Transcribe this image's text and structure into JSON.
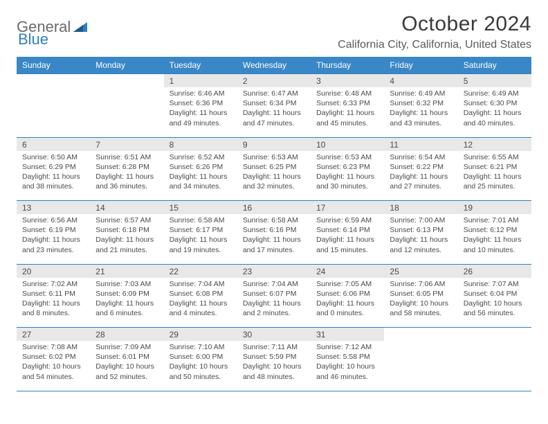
{
  "logo": {
    "word1": "General",
    "word2": "Blue"
  },
  "title": "October 2024",
  "location": "California City, California, United States",
  "header_bg": "#3a87c7",
  "accent_border": "#2f7fbf",
  "days": [
    "Sunday",
    "Monday",
    "Tuesday",
    "Wednesday",
    "Thursday",
    "Friday",
    "Saturday"
  ],
  "weeks": [
    [
      null,
      null,
      {
        "n": "1",
        "sr": "6:46 AM",
        "ss": "6:36 PM",
        "dl": "11 hours and 49 minutes."
      },
      {
        "n": "2",
        "sr": "6:47 AM",
        "ss": "6:34 PM",
        "dl": "11 hours and 47 minutes."
      },
      {
        "n": "3",
        "sr": "6:48 AM",
        "ss": "6:33 PM",
        "dl": "11 hours and 45 minutes."
      },
      {
        "n": "4",
        "sr": "6:49 AM",
        "ss": "6:32 PM",
        "dl": "11 hours and 43 minutes."
      },
      {
        "n": "5",
        "sr": "6:49 AM",
        "ss": "6:30 PM",
        "dl": "11 hours and 40 minutes."
      }
    ],
    [
      {
        "n": "6",
        "sr": "6:50 AM",
        "ss": "6:29 PM",
        "dl": "11 hours and 38 minutes."
      },
      {
        "n": "7",
        "sr": "6:51 AM",
        "ss": "6:28 PM",
        "dl": "11 hours and 36 minutes."
      },
      {
        "n": "8",
        "sr": "6:52 AM",
        "ss": "6:26 PM",
        "dl": "11 hours and 34 minutes."
      },
      {
        "n": "9",
        "sr": "6:53 AM",
        "ss": "6:25 PM",
        "dl": "11 hours and 32 minutes."
      },
      {
        "n": "10",
        "sr": "6:53 AM",
        "ss": "6:23 PM",
        "dl": "11 hours and 30 minutes."
      },
      {
        "n": "11",
        "sr": "6:54 AM",
        "ss": "6:22 PM",
        "dl": "11 hours and 27 minutes."
      },
      {
        "n": "12",
        "sr": "6:55 AM",
        "ss": "6:21 PM",
        "dl": "11 hours and 25 minutes."
      }
    ],
    [
      {
        "n": "13",
        "sr": "6:56 AM",
        "ss": "6:19 PM",
        "dl": "11 hours and 23 minutes."
      },
      {
        "n": "14",
        "sr": "6:57 AM",
        "ss": "6:18 PM",
        "dl": "11 hours and 21 minutes."
      },
      {
        "n": "15",
        "sr": "6:58 AM",
        "ss": "6:17 PM",
        "dl": "11 hours and 19 minutes."
      },
      {
        "n": "16",
        "sr": "6:58 AM",
        "ss": "6:16 PM",
        "dl": "11 hours and 17 minutes."
      },
      {
        "n": "17",
        "sr": "6:59 AM",
        "ss": "6:14 PM",
        "dl": "11 hours and 15 minutes."
      },
      {
        "n": "18",
        "sr": "7:00 AM",
        "ss": "6:13 PM",
        "dl": "11 hours and 12 minutes."
      },
      {
        "n": "19",
        "sr": "7:01 AM",
        "ss": "6:12 PM",
        "dl": "11 hours and 10 minutes."
      }
    ],
    [
      {
        "n": "20",
        "sr": "7:02 AM",
        "ss": "6:11 PM",
        "dl": "11 hours and 8 minutes."
      },
      {
        "n": "21",
        "sr": "7:03 AM",
        "ss": "6:09 PM",
        "dl": "11 hours and 6 minutes."
      },
      {
        "n": "22",
        "sr": "7:04 AM",
        "ss": "6:08 PM",
        "dl": "11 hours and 4 minutes."
      },
      {
        "n": "23",
        "sr": "7:04 AM",
        "ss": "6:07 PM",
        "dl": "11 hours and 2 minutes."
      },
      {
        "n": "24",
        "sr": "7:05 AM",
        "ss": "6:06 PM",
        "dl": "11 hours and 0 minutes."
      },
      {
        "n": "25",
        "sr": "7:06 AM",
        "ss": "6:05 PM",
        "dl": "10 hours and 58 minutes."
      },
      {
        "n": "26",
        "sr": "7:07 AM",
        "ss": "6:04 PM",
        "dl": "10 hours and 56 minutes."
      }
    ],
    [
      {
        "n": "27",
        "sr": "7:08 AM",
        "ss": "6:02 PM",
        "dl": "10 hours and 54 minutes."
      },
      {
        "n": "28",
        "sr": "7:09 AM",
        "ss": "6:01 PM",
        "dl": "10 hours and 52 minutes."
      },
      {
        "n": "29",
        "sr": "7:10 AM",
        "ss": "6:00 PM",
        "dl": "10 hours and 50 minutes."
      },
      {
        "n": "30",
        "sr": "7:11 AM",
        "ss": "5:59 PM",
        "dl": "10 hours and 48 minutes."
      },
      {
        "n": "31",
        "sr": "7:12 AM",
        "ss": "5:58 PM",
        "dl": "10 hours and 46 minutes."
      },
      null,
      null
    ]
  ],
  "labels": {
    "sunrise": "Sunrise:",
    "sunset": "Sunset:",
    "daylight": "Daylight:"
  }
}
